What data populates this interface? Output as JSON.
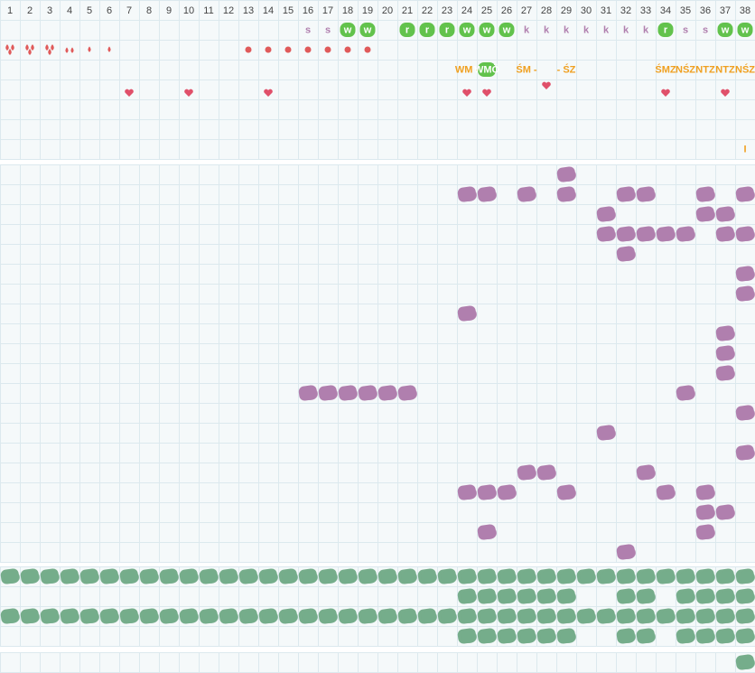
{
  "days": [
    1,
    2,
    3,
    4,
    5,
    6,
    7,
    8,
    9,
    10,
    11,
    12,
    13,
    14,
    15,
    16,
    17,
    18,
    19,
    20,
    21,
    22,
    23,
    24,
    25,
    26,
    27,
    28,
    29,
    30,
    31,
    32,
    33,
    34,
    35,
    36,
    37,
    38
  ],
  "signs": [
    null,
    null,
    null,
    null,
    null,
    null,
    null,
    null,
    null,
    null,
    null,
    null,
    null,
    null,
    null,
    "s",
    "s",
    {
      "text": "w",
      "badge": true
    },
    {
      "text": "w",
      "badge": true
    },
    null,
    {
      "text": "r",
      "badge": true
    },
    {
      "text": "r",
      "badge": true
    },
    {
      "text": "r",
      "badge": true
    },
    {
      "text": "w",
      "badge": true
    },
    {
      "text": "w",
      "badge": true
    },
    {
      "text": "w",
      "badge": true
    },
    "k",
    "k",
    "k",
    "k",
    "k",
    "k",
    "k",
    {
      "text": "r",
      "badge": true
    },
    "s",
    "s",
    {
      "text": "w",
      "badge": true
    },
    {
      "text": "w",
      "badge": true
    }
  ],
  "labels": [
    null,
    null,
    null,
    null,
    null,
    null,
    null,
    null,
    null,
    null,
    null,
    null,
    null,
    null,
    null,
    null,
    null,
    null,
    null,
    null,
    null,
    null,
    null,
    "WM -",
    {
      "text": "WMÖ",
      "badge": true
    },
    null,
    "ŚM -",
    null,
    "- ŚZ",
    null,
    null,
    null,
    null,
    "ŚMZ",
    "NŚZ",
    "NTZ",
    "NTZ",
    "NŚZ"
  ],
  "notes": [
    null,
    null,
    null,
    null,
    null,
    null,
    null,
    null,
    null,
    null,
    null,
    null,
    null,
    null,
    null,
    null,
    null,
    null,
    null,
    null,
    null,
    null,
    null,
    null,
    null,
    null,
    null,
    null,
    null,
    null,
    null,
    null,
    null,
    null,
    null,
    null,
    null,
    "I"
  ]
}
